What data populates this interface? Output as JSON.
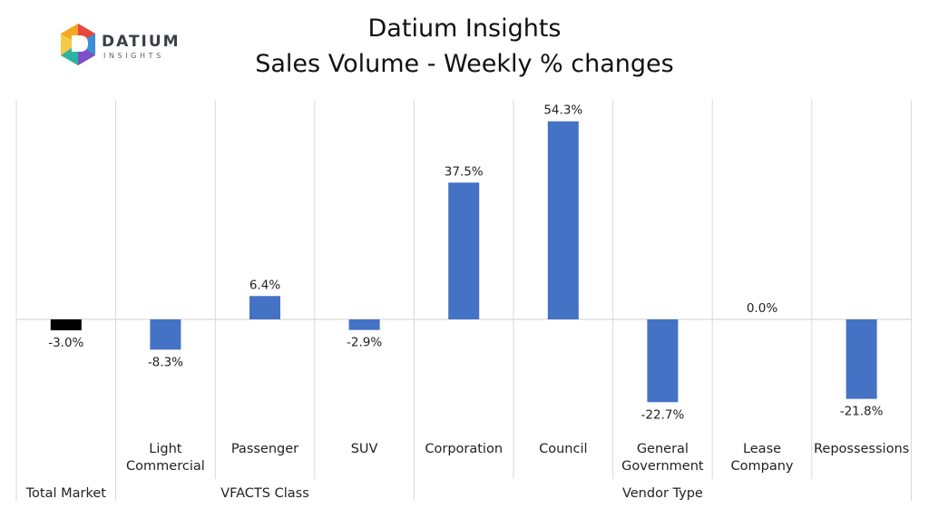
{
  "logo": {
    "word": "DATIUM",
    "sub": "INSIGHTS"
  },
  "header": {
    "line1": "Datium Insights",
    "line2": "Sales Volume - Weekly % changes"
  },
  "colors": {
    "bar": "#4472C4",
    "total_bar": "#000000",
    "grid": "#d9d9d9"
  },
  "chart_data": {
    "type": "bar",
    "title": "Datium Insights\nSales Volume - Weekly % changes",
    "categories": [
      [
        "Total Market"
      ],
      [
        "Light",
        "Commercial"
      ],
      [
        "Passenger"
      ],
      [
        "SUV"
      ],
      [
        "Corporation"
      ],
      [
        "Council"
      ],
      [
        "General",
        "Government"
      ],
      [
        "Lease",
        "Company"
      ],
      [
        "Repossessions"
      ]
    ],
    "values": [
      -3.0,
      -8.3,
      6.4,
      -2.9,
      37.5,
      54.3,
      -22.7,
      0.0,
      -21.8
    ],
    "data_labels": [
      "-3.0%",
      "-8.3%",
      "6.4%",
      "-2.9%",
      "37.5%",
      "54.3%",
      "-22.7%",
      "0.0%",
      "-21.8%"
    ],
    "bar_colors": [
      "#000000",
      "#4472C4",
      "#4472C4",
      "#4472C4",
      "#4472C4",
      "#4472C4",
      "#4472C4",
      "#4472C4",
      "#4472C4"
    ],
    "groups": [
      {
        "label": "Total Market",
        "members": [
          "Total Market"
        ]
      },
      {
        "label": "VFACTS Class",
        "members": [
          "Light Commercial",
          "Passenger",
          "SUV"
        ]
      },
      {
        "label": "Vendor Type",
        "members": [
          "Corporation",
          "Council",
          "General Government",
          "Lease Company",
          "Repossessions"
        ]
      }
    ],
    "y_axis_visible": false,
    "grid": false,
    "legend": "none"
  }
}
